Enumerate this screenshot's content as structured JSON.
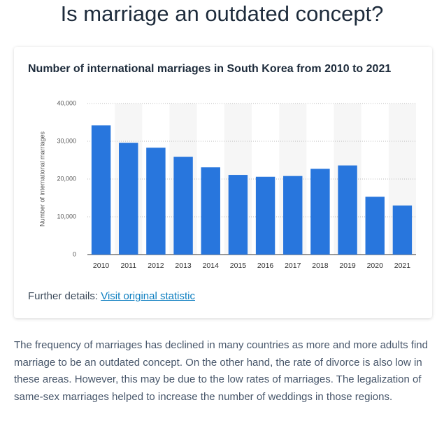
{
  "heading": "Is marriage an outdated concept?",
  "details_prefix": "Further details:",
  "details_link": "Visit original statistic",
  "paragraph": "The frequency of marriages has declined in many countries as more and more adults find marriage to be an outdated concept. On the other hand, the rate of divorce is also low in these areas. However, this may be due to the low rates of marriages. The legalization of same-sex marriages helped to increase the number of weddings in those regions.",
  "chart_data": {
    "type": "bar",
    "title": "Number of international marriages in South Korea from 2010 to 2021",
    "y_label": "Number of international marriages",
    "categories": [
      "2010",
      "2011",
      "2012",
      "2013",
      "2014",
      "2015",
      "2016",
      "2017",
      "2018",
      "2019",
      "2020",
      "2021"
    ],
    "values": [
      34200,
      29600,
      28300,
      25900,
      23100,
      21100,
      20600,
      20800,
      22700,
      23600,
      15300,
      13000
    ],
    "color": "#2876dd",
    "ylim": [
      0,
      40000
    ],
    "yticks": [
      0,
      {
        "value": 10000,
        "label": "10,000"
      },
      {
        "value": 20000,
        "label": "20,000"
      },
      {
        "value": 30000,
        "label": "30,000"
      },
      {
        "value": 40000,
        "label": "40,000"
      }
    ],
    "grid": true
  }
}
